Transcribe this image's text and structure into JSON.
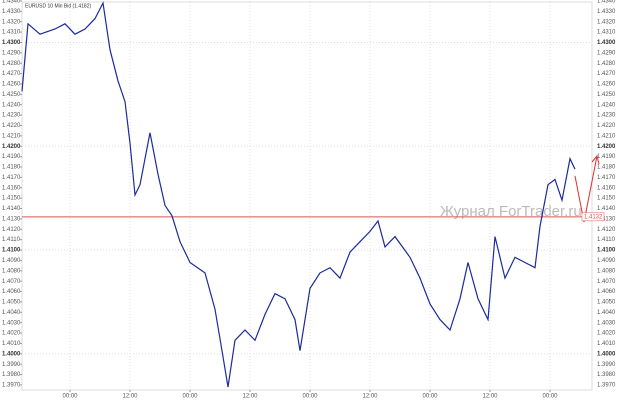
{
  "chart_data": {
    "type": "line",
    "title": "EURUSD 10 Min Bid (1.4182)",
    "watermark": "Журнал ForTrader.ru",
    "x": [
      -9.6,
      -8.4,
      -6,
      -3,
      -1,
      1,
      3,
      5,
      6.6,
      8,
      9.6,
      11,
      12,
      13,
      14,
      16,
      17.6,
      19,
      20.4,
      22,
      24,
      27,
      29,
      30.4,
      31.6,
      33,
      35,
      37,
      39,
      41,
      43,
      45,
      46,
      48,
      50,
      52,
      54,
      56,
      58,
      60,
      61.6,
      63,
      65,
      68,
      70,
      72,
      74,
      76,
      78,
      79.6,
      81.6,
      83.6,
      85,
      87,
      89,
      91,
      93,
      94,
      95.6,
      97,
      98.4,
      100,
      101
    ],
    "series": [
      {
        "name": "EURUSD",
        "color": "#1c2a9c",
        "values": [
          1.4253,
          1.4318,
          1.4308,
          1.4313,
          1.4318,
          1.4308,
          1.4313,
          1.4323,
          1.4338,
          1.4293,
          1.4263,
          1.4243,
          1.4203,
          1.4153,
          1.4163,
          1.4213,
          1.4173,
          1.4143,
          1.4133,
          1.4108,
          1.4088,
          1.4078,
          1.4043,
          1.4003,
          1.3968,
          1.4013,
          1.4023,
          1.4013,
          1.4038,
          1.4058,
          1.4053,
          1.4033,
          1.4003,
          1.4063,
          1.4078,
          1.4083,
          1.4073,
          1.4098,
          1.4108,
          1.4118,
          1.4128,
          1.4103,
          1.4113,
          1.4093,
          1.4073,
          1.4048,
          1.4033,
          1.4023,
          1.4053,
          1.4088,
          1.4053,
          1.4033,
          1.4113,
          1.4073,
          1.4093,
          1.4088,
          1.4083,
          1.4123,
          1.4163,
          1.4168,
          1.4148,
          1.4188,
          1.4178
        ]
      }
    ],
    "level": {
      "value": 1.4132,
      "label": "1.4132",
      "color": "#d9534f"
    },
    "xlim": [
      -9.6,
      104.4
    ],
    "xticks": [
      {
        "value": 0,
        "label": "00:00"
      },
      {
        "value": 12,
        "label": "12:00"
      },
      {
        "value": 24,
        "label": "00:00"
      },
      {
        "value": 36,
        "label": "12:00"
      },
      {
        "value": 48,
        "label": "00:00"
      },
      {
        "value": 60,
        "label": "12:00"
      },
      {
        "value": 72,
        "label": "00:00"
      },
      {
        "value": 84,
        "label": "12:00"
      },
      {
        "value": 96,
        "label": "00:00"
      }
    ],
    "ylim": [
      1.3969,
      1.4339
    ],
    "yticks": [
      {
        "value": 1.397,
        "label": "1.3970"
      },
      {
        "value": 1.398,
        "label": "1.3980"
      },
      {
        "value": 1.399,
        "label": "1.3990"
      },
      {
        "value": 1.4,
        "label": "1.4000"
      },
      {
        "value": 1.401,
        "label": "1.4010"
      },
      {
        "value": 1.402,
        "label": "1.4020"
      },
      {
        "value": 1.403,
        "label": "1.4030"
      },
      {
        "value": 1.404,
        "label": "1.4040"
      },
      {
        "value": 1.405,
        "label": "1.4050"
      },
      {
        "value": 1.406,
        "label": "1.4060"
      },
      {
        "value": 1.407,
        "label": "1.4070"
      },
      {
        "value": 1.408,
        "label": "1.4080"
      },
      {
        "value": 1.409,
        "label": "1.4090"
      },
      {
        "value": 1.41,
        "label": "1.4100"
      },
      {
        "value": 1.411,
        "label": "1.4110"
      },
      {
        "value": 1.412,
        "label": "1.4120"
      },
      {
        "value": 1.413,
        "label": "1.4130"
      },
      {
        "value": 1.414,
        "label": "1.4140"
      },
      {
        "value": 1.415,
        "label": "1.4150"
      },
      {
        "value": 1.416,
        "label": "1.4160"
      },
      {
        "value": 1.417,
        "label": "1.4170"
      },
      {
        "value": 1.418,
        "label": "1.4180"
      },
      {
        "value": 1.419,
        "label": "1.4190"
      },
      {
        "value": 1.42,
        "label": "1.4200"
      },
      {
        "value": 1.421,
        "label": "1.4210"
      },
      {
        "value": 1.422,
        "label": "1.4220"
      },
      {
        "value": 1.423,
        "label": "1.4230"
      },
      {
        "value": 1.424,
        "label": "1.4240"
      },
      {
        "value": 1.425,
        "label": "1.4250"
      },
      {
        "value": 1.426,
        "label": "1.4260"
      },
      {
        "value": 1.427,
        "label": "1.4270"
      },
      {
        "value": 1.428,
        "label": "1.4280"
      },
      {
        "value": 1.429,
        "label": "1.4290"
      },
      {
        "value": 1.43,
        "label": "1.4300"
      },
      {
        "value": 1.431,
        "label": "1.4310"
      },
      {
        "value": 1.432,
        "label": "1.4320"
      },
      {
        "value": 1.433,
        "label": "1.4330"
      },
      {
        "value": 1.434,
        "label": "1.4340"
      }
    ],
    "grid": true
  }
}
